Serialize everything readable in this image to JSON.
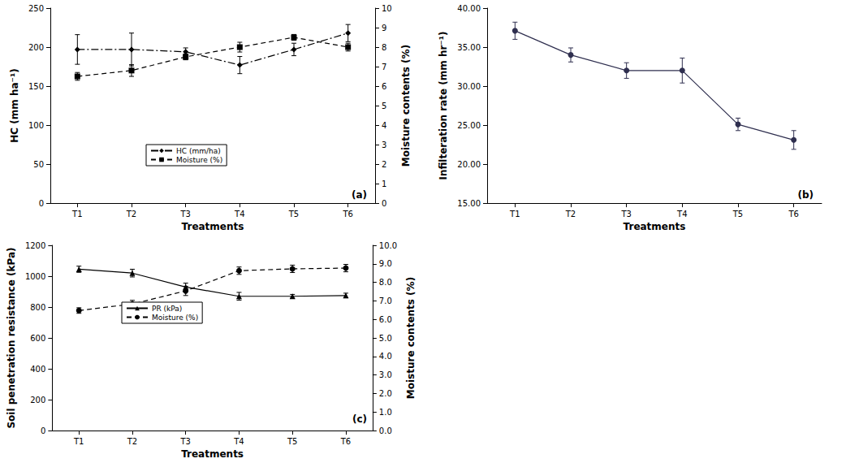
{
  "chart_data": [
    {
      "type": "line",
      "annotation": "(a)",
      "categories": [
        "T1",
        "T2",
        "T3",
        "T4",
        "T5",
        "T6"
      ],
      "x_label": "Treatments",
      "y_label": "HC (mm ha⁻¹)",
      "y2_label": "Moisture contents (%)",
      "ylim": [
        0,
        250
      ],
      "yticks": [
        0,
        50,
        100,
        150,
        200,
        250
      ],
      "y2lim": [
        0,
        10
      ],
      "y2ticks": [
        0,
        1,
        2,
        3,
        4,
        5,
        6,
        7,
        8,
        9,
        10
      ],
      "grid": false,
      "legend": "left",
      "series": [
        {
          "name": "HC (mm/ha)",
          "color": "#000000",
          "marker": "diamond",
          "line_style": "dashdot",
          "values": [
            197,
            197,
            194,
            177,
            197,
            218
          ],
          "errors": [
            19,
            21,
            5,
            11,
            8,
            11
          ]
        },
        {
          "name": "Moisture (%)",
          "axis": "y2",
          "color": "#000000",
          "marker": "square",
          "line_style": "dashed",
          "values": [
            6.5,
            6.8,
            7.5,
            8.0,
            8.5,
            8.0
          ],
          "errors": [
            0.2,
            0.3,
            0.15,
            0.25,
            0.15,
            0.2
          ]
        }
      ]
    },
    {
      "type": "line",
      "annotation": "(b)",
      "categories": [
        "T1",
        "T2",
        "T3",
        "T4",
        "T5",
        "T6"
      ],
      "x_label": "Treatments",
      "y_label": "Infilteration rate (mm hr⁻¹)",
      "ylim": [
        15,
        40
      ],
      "yticks": [
        {
          "value": 15,
          "label": "15.00"
        },
        {
          "value": 20,
          "label": "20.00"
        },
        {
          "value": 25,
          "label": "25.00"
        },
        {
          "value": 30,
          "label": "30.00"
        },
        {
          "value": 35,
          "label": "35.00"
        },
        {
          "value": 40,
          "label": "40.00"
        }
      ],
      "grid": false,
      "series": [
        {
          "color": "#2f2f4f",
          "marker": "circle",
          "line_style": "solid",
          "values": [
            37.1,
            34.0,
            32.0,
            32.0,
            25.1,
            23.1
          ],
          "errors": [
            1.1,
            0.9,
            1.0,
            1.6,
            0.8,
            1.2
          ]
        }
      ]
    },
    {
      "type": "line",
      "annotation": "(c)",
      "categories": [
        "T1",
        "T2",
        "T3",
        "T4",
        "T5",
        "T6"
      ],
      "x_label": "Treatments",
      "y_label": "Soil penetration resistance (kPa)",
      "y2_label": "Moisture contents (%)",
      "ylim": [
        0,
        1200
      ],
      "yticks": [
        0,
        200,
        400,
        600,
        800,
        1000,
        1200
      ],
      "y2lim": [
        0,
        10
      ],
      "y2ticks": [
        {
          "value": 0,
          "label": "0.0"
        },
        {
          "value": 1,
          "label": "1.0"
        },
        {
          "value": 2,
          "label": "2.0"
        },
        {
          "value": 3,
          "label": "3.0"
        },
        {
          "value": 4,
          "label": "4.0"
        },
        {
          "value": 5,
          "label": "5.0"
        },
        {
          "value": 6,
          "label": "6.0"
        },
        {
          "value": 7,
          "label": "7.0"
        },
        {
          "value": 8,
          "label": "8.0"
        },
        {
          "value": 9,
          "label": "9.0"
        },
        {
          "value": 10,
          "label": "10.0"
        }
      ],
      "grid": false,
      "legend": "left",
      "series": [
        {
          "name": "PR (kPa)",
          "color": "#000000",
          "marker": "triangle",
          "line_style": "solid",
          "values": [
            1045,
            1020,
            930,
            870,
            870,
            875
          ],
          "errors": [
            20,
            25,
            25,
            25,
            12,
            15
          ]
        },
        {
          "name": "Moisture (%)",
          "axis": "y2",
          "color": "#000000",
          "marker": "circle",
          "line_style": "dashed",
          "values": [
            6.48,
            6.83,
            7.54,
            8.63,
            8.73,
            8.77
          ],
          "errors": [
            0.15,
            0.2,
            0.25,
            0.2,
            0.2,
            0.2
          ]
        }
      ]
    }
  ]
}
